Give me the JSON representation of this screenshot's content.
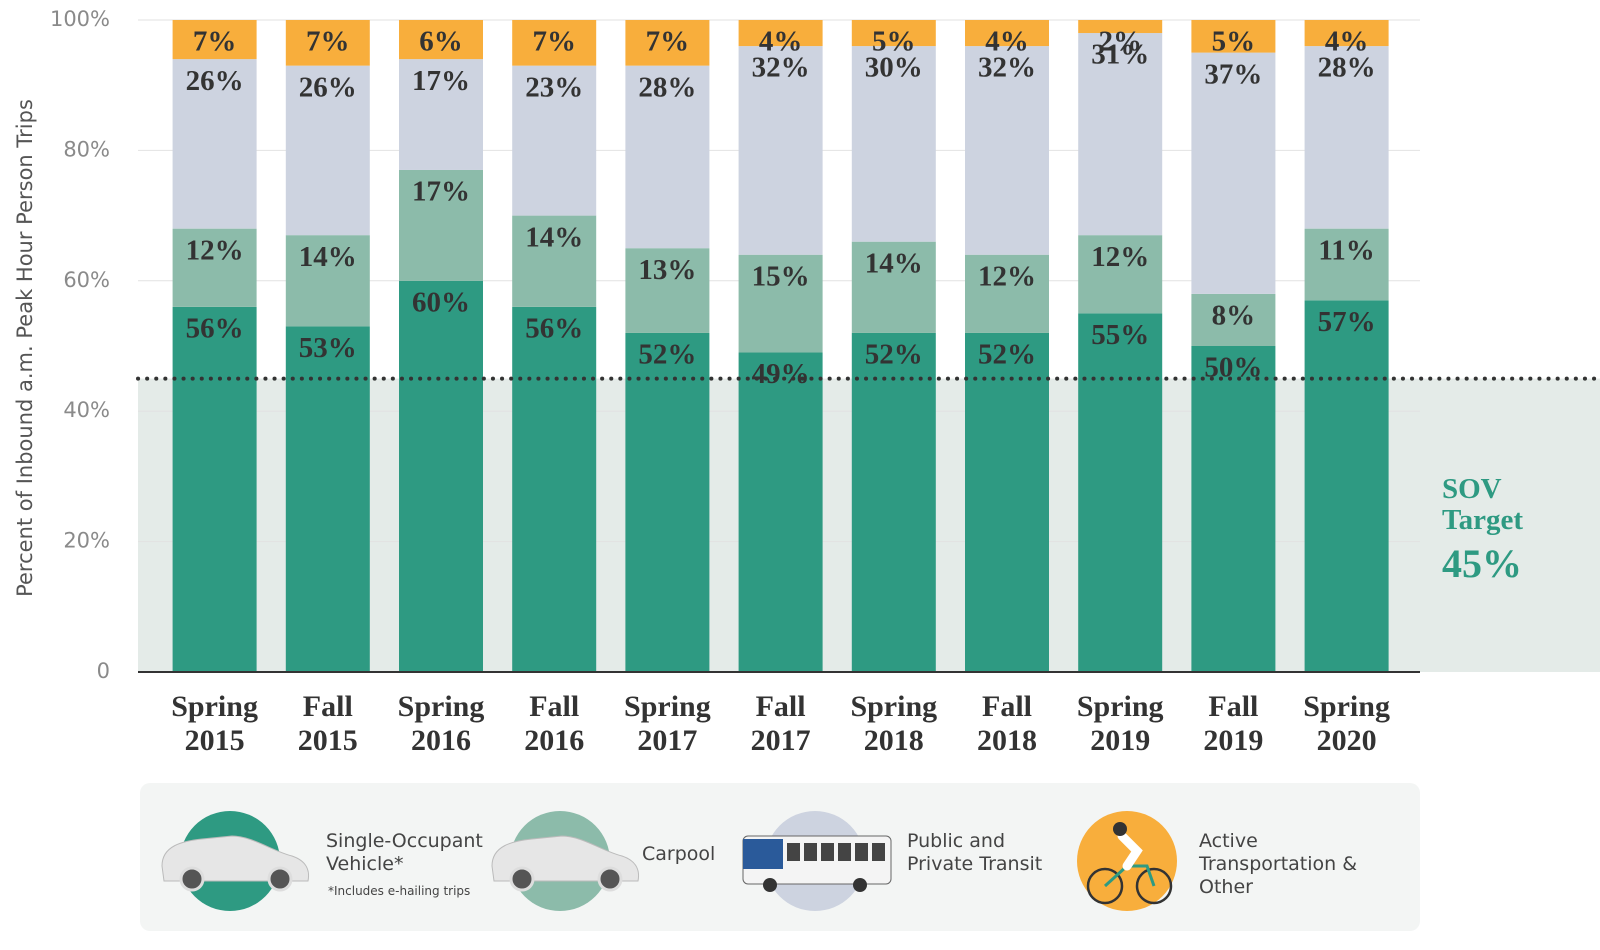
{
  "chart_data": {
    "type": "stacked_bar",
    "y_label": "Percent of Inbound a.m. Peak Hour Person Trips",
    "categories": [
      "Spring 2015",
      "Fall 2015",
      "Spring 2016",
      "Fall 2016",
      "Spring 2017",
      "Fall 2017",
      "Spring 2018",
      "Fall 2018",
      "Spring 2019",
      "Fall 2019",
      "Spring 2020"
    ],
    "series": [
      {
        "name": "Single-Occupant Vehicle*",
        "note": "*Includes e-hailing trips",
        "color": "#2e9a82",
        "values": [
          56,
          53,
          60,
          56,
          52,
          49,
          52,
          52,
          55,
          50,
          57
        ],
        "value_labels": [
          "56%",
          "53%",
          "60%",
          "56%",
          "52%",
          "49%",
          "52%",
          "52%",
          "55%",
          "50%",
          "57%"
        ]
      },
      {
        "name": "Carpool",
        "color": "#8cbbaa",
        "values": [
          12,
          14,
          17,
          14,
          13,
          15,
          14,
          12,
          12,
          8,
          11
        ],
        "value_labels": [
          "12%",
          "14%",
          "17%",
          "14%",
          "13%",
          "15%",
          "14%",
          "12%",
          "12%",
          "8%",
          "11%"
        ]
      },
      {
        "name": "Public and Private Transit",
        "color": "#cdd3e0",
        "values": [
          26,
          26,
          17,
          23,
          28,
          32,
          30,
          32,
          31,
          37,
          28
        ],
        "value_labels": [
          "26%",
          "26%",
          "17%",
          "23%",
          "28%",
          "32%",
          "30%",
          "32%",
          "31%",
          "37%",
          "28%"
        ]
      },
      {
        "name": "Active Transportation & Other",
        "color": "#f8ae3c",
        "values": [
          7,
          7,
          6,
          7,
          7,
          4,
          5,
          4,
          2,
          5,
          4
        ],
        "value_labels": [
          "7%",
          "7%",
          "6%",
          "7%",
          "7%",
          "4%",
          "5%",
          "4%",
          "2%",
          "5%",
          "4%"
        ]
      }
    ],
    "ylim": [
      0,
      100
    ],
    "yticks": [
      0,
      {
        "value": 20,
        "label": "20%"
      },
      {
        "value": 40,
        "label": "40%"
      },
      {
        "value": 60,
        "label": "60%"
      },
      {
        "value": 80,
        "label": "80%"
      },
      {
        "value": 100,
        "label": "100%"
      }
    ],
    "grid": true,
    "target": {
      "label": "SOV Target",
      "value": 45,
      "value_label": "45%"
    }
  }
}
